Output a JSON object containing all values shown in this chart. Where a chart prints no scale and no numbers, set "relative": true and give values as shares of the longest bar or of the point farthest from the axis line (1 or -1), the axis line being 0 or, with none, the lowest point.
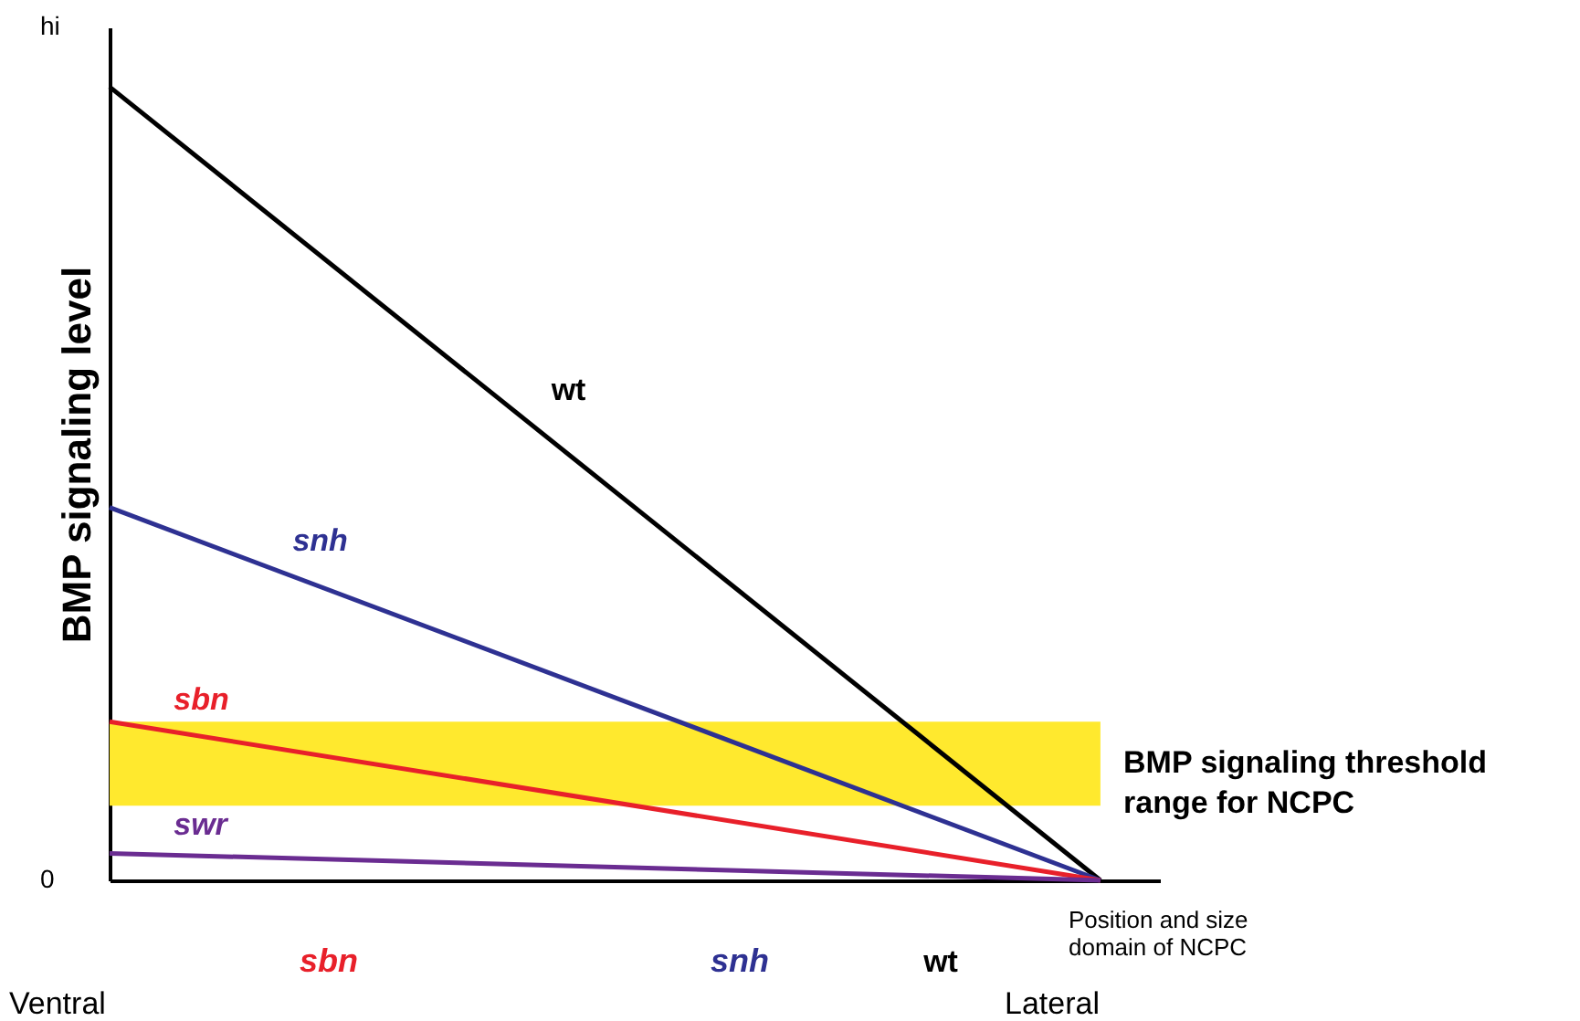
{
  "chart_data": {
    "type": "line",
    "relative": true,
    "legend": false,
    "grid": false,
    "tick_labels": false,
    "marker": "none",
    "line_style": "solid",
    "ylabel": "BMP signaling level",
    "categories": [
      null,
      null
    ],
    "series": [
      {
        "name": "wt",
        "color": "#000000",
        "values": [
          1,
          0
        ]
      },
      {
        "name": "snh",
        "color": "#2e3192",
        "values": [
          0.47,
          0
        ]
      },
      {
        "name": "sbn",
        "color": "#e8202a",
        "values": [
          0.2,
          0
        ]
      },
      {
        "name": "swr",
        "color": "#6a2c91",
        "values": [
          0.034,
          0
        ]
      }
    ],
    "bands": [
      {
        "axis": "y",
        "from": 0.094,
        "to": 0.2,
        "color": "#ffe92e",
        "label": "BMP signaling threshold range for NCPC"
      }
    ],
    "annotations": [
      "hi",
      "0",
      "Ventral",
      "Lateral",
      "Position and size domain of NCPC",
      "sbn",
      "snh",
      "wt"
    ]
  }
}
